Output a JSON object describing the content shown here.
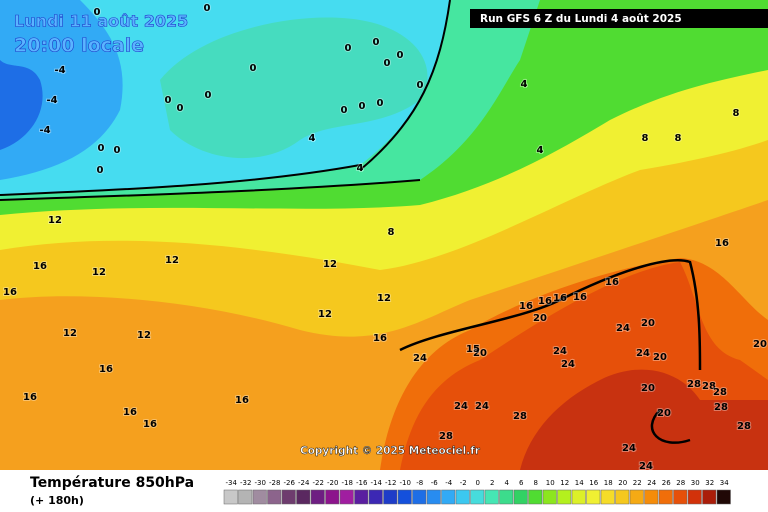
{
  "header": {
    "title": "Lundi 11 août 2025",
    "subtitle": "20:00 locale",
    "run": "Run GFS 6 Z du Lundi 4 août 2025"
  },
  "map": {
    "copyright": "Copyright © 2025 Meteociel.fr",
    "isotherm_labels": [
      0,
      0,
      0,
      0,
      0,
      0,
      0,
      0,
      0,
      0,
      0,
      0,
      0,
      0,
      0,
      0,
      0,
      -4,
      -4,
      -4,
      4,
      4,
      4,
      4,
      8,
      8,
      8,
      8,
      12,
      12,
      12,
      12,
      12,
      12,
      12,
      12,
      16,
      16,
      16,
      16,
      16,
      16,
      16,
      16,
      16,
      16,
      16,
      16,
      16,
      16,
      20,
      20,
      20,
      20,
      20,
      20,
      20,
      24,
      24,
      24,
      24,
      24,
      24,
      24,
      24,
      24,
      28,
      28,
      28,
      28,
      28,
      28,
      28,
      15
    ]
  },
  "legend": {
    "title": "Température 850hPa",
    "lead_time": "(+ 180h)",
    "scale": {
      "values": [
        -34,
        -32,
        -30,
        -28,
        -26,
        -24,
        -22,
        -20,
        -18,
        -16,
        -14,
        -12,
        -10,
        -8,
        -6,
        -4,
        -2,
        0,
        2,
        4,
        6,
        8,
        10,
        12,
        14,
        16,
        18,
        20,
        22,
        24,
        26,
        28,
        30,
        32,
        34
      ],
      "colors": [
        "#c8c8c8",
        "#b4b4b4",
        "#a08ca0",
        "#8c648c",
        "#6e3c6e",
        "#5a2860",
        "#6e1e82",
        "#8c148c",
        "#a01ea0",
        "#5a1ea0",
        "#3c28b4",
        "#1e3cc8",
        "#1450dc",
        "#1e6ee6",
        "#288cf0",
        "#32aaf5",
        "#3cc8f0",
        "#46dcdc",
        "#46e6b4",
        "#3cdc8c",
        "#32d264",
        "#50dc32",
        "#8ce61e",
        "#b4f01e",
        "#dcf028",
        "#f0f032",
        "#f5dc28",
        "#f5c81e",
        "#f5aa14",
        "#f58c0a",
        "#f06e0a",
        "#e6500a",
        "#d2320a",
        "#aa1e0a",
        "#200806"
      ]
    }
  }
}
